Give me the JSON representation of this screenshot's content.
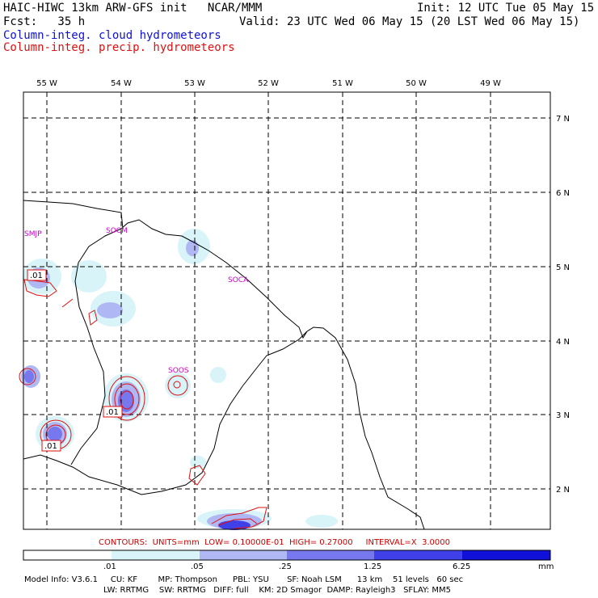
{
  "header": {
    "title": "HAIC-HIWC 13km ARW-GFS init   NCAR/MMM",
    "init": "Init: 12 UTC Tue 05 May 15",
    "fcst": "Fcst:   35 h",
    "valid": "Valid: 23 UTC Wed 06 May 15 (20 LST Wed 06 May 15)",
    "field1": "Column-integ. cloud hydrometeors",
    "field2": "Column-integ. precip. hydrometeors"
  },
  "map": {
    "lon_labels": [
      "55 W",
      "54 W",
      "53 W",
      "52 W",
      "51 W",
      "50 W",
      "49 W"
    ],
    "lat_labels": [
      "7 N",
      "6 N",
      "5 N",
      "4 N",
      "3 N",
      "2 N"
    ],
    "stations": [
      "SMJP",
      "SOCM",
      "SOCA",
      "SOOS"
    ],
    "contour_labels": [
      ".01",
      ".01",
      ".01"
    ]
  },
  "contours_text": "CONTOURS:  UNITS=mm  LOW= 0.10000E-01  HIGH= 0.27000     INTERVAL=X  3.0000",
  "colorbar": {
    "labels": [
      ".01",
      ".05",
      ".25",
      "1.25",
      "6.25"
    ],
    "units": "mm",
    "colors": [
      "#ffffff",
      "#d8f4f8",
      "#b0b8f4",
      "#7878ee",
      "#4040e8",
      "#1010d8"
    ]
  },
  "model_info": {
    "line1": "Model Info: V3.6.1     CU: KF        MP: Thompson      PBL: YSU       SF: Noah LSM      13 km    51 levels   60 sec",
    "line2": "LW: RRTMG    SW: RRTMG   DIFF: full    KM: 2D Smagor  DAMP: Rayleigh3   SFLAY: MM5"
  }
}
